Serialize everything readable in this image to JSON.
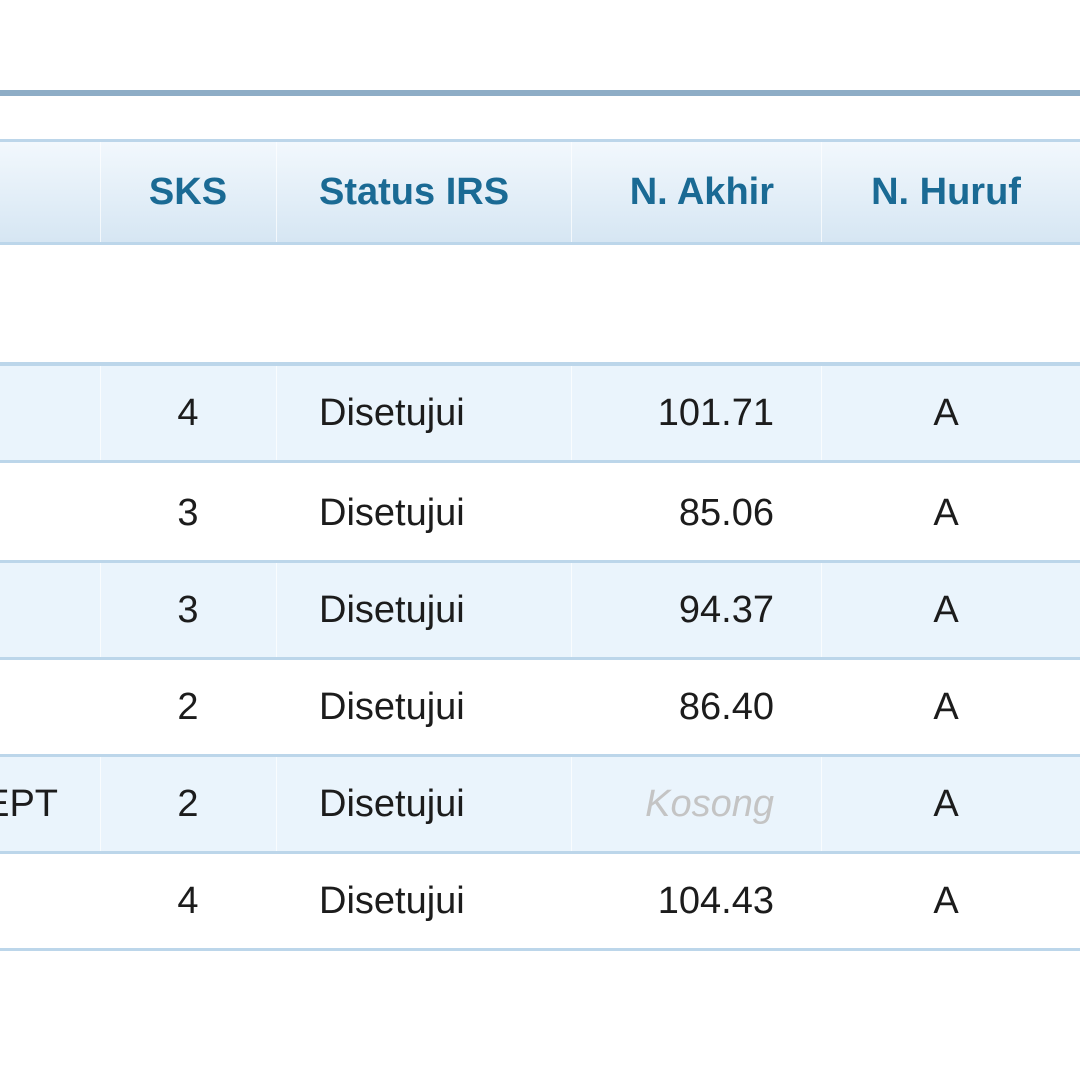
{
  "table": {
    "header": [
      "SKS",
      "Status IRS",
      "N. Akhir",
      "N. Huruf"
    ],
    "rows": [
      {
        "sks": "4",
        "status": "Disetujui",
        "akhir": "101.71",
        "huruf": "A"
      },
      {
        "sks": "3",
        "status": "Disetujui",
        "akhir": "85.06",
        "huruf": "A"
      },
      {
        "sks": "3",
        "status": "Disetujui",
        "akhir": "94.37",
        "huruf": "A"
      },
      {
        "sks": "2",
        "status": "Disetujui",
        "akhir": "86.40",
        "huruf": "A"
      },
      {
        "course": "EPT",
        "sks": "2",
        "status": "Disetujui",
        "akhir": "Kosong",
        "huruf": "A"
      },
      {
        "sks": "4",
        "status": "Disetujui",
        "akhir": "104.43",
        "huruf": "A"
      }
    ]
  }
}
